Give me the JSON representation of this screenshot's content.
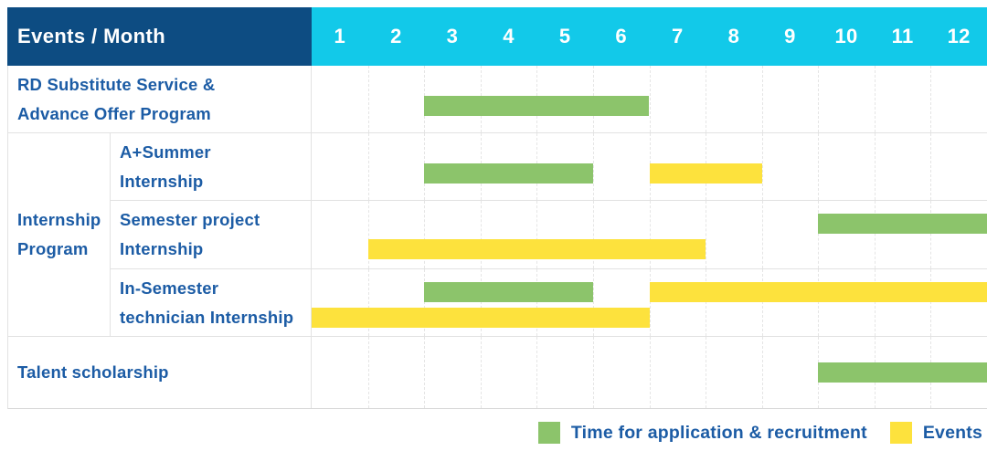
{
  "title": "Events / Month",
  "months": [
    "1",
    "2",
    "3",
    "4",
    "5",
    "6",
    "7",
    "8",
    "9",
    "10",
    "11",
    "12"
  ],
  "group_label_lines": [
    "Internship",
    "Program"
  ],
  "colors": {
    "navy": "#0D4C82",
    "cyan": "#12C9E9",
    "green": "#8CC46B",
    "yellow": "#FDE23D",
    "label_blue": "#1C5CA5",
    "grid": "#E5E5E5"
  },
  "legend": [
    {
      "key": "green",
      "label": "Time for application & recruitment"
    },
    {
      "key": "yellow",
      "label": "Events"
    }
  ],
  "chart_data": {
    "type": "gantt",
    "x_unit": "month",
    "x_range": [
      1,
      12
    ],
    "header_label": "Events / Month",
    "series_meaning": {
      "green": "Time for application & recruitment",
      "yellow": "Events"
    },
    "rows": [
      {
        "group": "",
        "label": "RD Substitute Service & Advance Offer Program",
        "label_lines": [
          "RD Substitute Service &",
          "Advance Offer Program"
        ],
        "tracks": 1,
        "bars": [
          {
            "color": "green",
            "start_month": 3,
            "end_month": 6,
            "track": 0
          }
        ]
      },
      {
        "group": "Internship Program",
        "label": "A+Summer Internship",
        "label_lines": [
          "A+Summer",
          "Internship"
        ],
        "tracks": 1,
        "bars": [
          {
            "color": "green",
            "start_month": 3,
            "end_month": 5,
            "track": 0
          },
          {
            "color": "yellow",
            "start_month": 7,
            "end_month": 8,
            "track": 0
          }
        ]
      },
      {
        "group": "Internship Program",
        "label": "Semester project Internship",
        "label_lines": [
          "Semester project",
          "Internship"
        ],
        "tracks": 2,
        "bars": [
          {
            "color": "green",
            "start_month": 10,
            "end_month": 12,
            "track": 0
          },
          {
            "color": "yellow",
            "start_month": 2,
            "end_month": 7,
            "track": 1
          }
        ]
      },
      {
        "group": "Internship Program",
        "label": "In-Semester technician Internship",
        "label_lines": [
          "In-Semester",
          "technician Internship"
        ],
        "tracks": 2,
        "bars": [
          {
            "color": "green",
            "start_month": 3,
            "end_month": 5,
            "track": 0
          },
          {
            "color": "yellow",
            "start_month": 7,
            "end_month": 12,
            "track": 0
          },
          {
            "color": "yellow",
            "start_month": 1,
            "end_month": 6,
            "track": 1
          }
        ]
      },
      {
        "group": "",
        "label": "Talent scholarship",
        "label_lines": [
          "Talent scholarship"
        ],
        "tracks": 1,
        "bars": [
          {
            "color": "green",
            "start_month": 10,
            "end_month": 12,
            "track": 0
          }
        ]
      }
    ]
  }
}
